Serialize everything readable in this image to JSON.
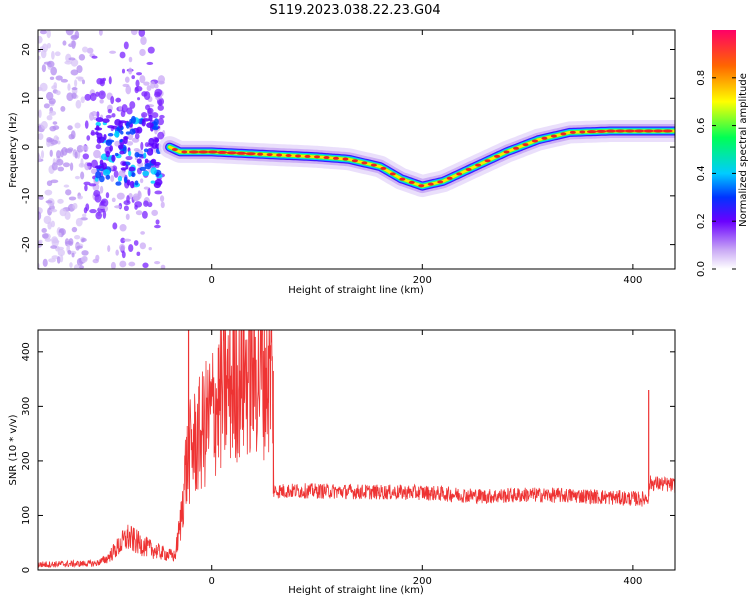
{
  "title": "S119.2023.038.22.23.G04",
  "spectrogram": {
    "type": "heatmap",
    "xlabel": "Height of straight line (km)",
    "ylabel": "Frequency (Hz)",
    "xlim": [
      -165,
      440
    ],
    "ylim": [
      -25,
      24
    ],
    "xticks": [
      0,
      200,
      400
    ],
    "yticks": [
      -20,
      -10,
      0,
      10,
      20
    ],
    "colorbar": {
      "label": "Normalized spectral amplitude",
      "lim": [
        0,
        1
      ],
      "ticks": [
        "0.0",
        "0.2",
        "0.4",
        "0.6",
        "0.8"
      ]
    },
    "ridge": {
      "x": [
        -40,
        -30,
        -20,
        0,
        50,
        100,
        130,
        160,
        180,
        200,
        220,
        250,
        280,
        310,
        340,
        380,
        440
      ],
      "y": [
        0,
        -1,
        -1,
        -1,
        -1.5,
        -2,
        -2.5,
        -4,
        -6.5,
        -8,
        -7,
        -4,
        -1,
        1.5,
        3,
        3.3,
        3.3
      ]
    }
  },
  "snr": {
    "type": "line",
    "xlabel": "Height of straight line (km)",
    "ylabel": "SNR (10 * v/v)",
    "xlim": [
      -165,
      440
    ],
    "ylim": [
      0,
      440
    ],
    "xticks": [
      0,
      200,
      400
    ],
    "yticks": [
      0,
      100,
      200,
      300,
      400
    ],
    "color": "#ee3333",
    "envelope": {
      "x": [
        -165,
        -110,
        -100,
        -90,
        -80,
        -60,
        -45,
        -35,
        -30,
        -25,
        -20,
        -10,
        0,
        10,
        20,
        30,
        40,
        50,
        58,
        59,
        100,
        150,
        200,
        260,
        300,
        350,
        410,
        415,
        416,
        440
      ],
      "y": [
        10,
        12,
        20,
        40,
        60,
        40,
        30,
        25,
        80,
        180,
        220,
        250,
        290,
        320,
        345,
        360,
        365,
        365,
        360,
        145,
        145,
        143,
        142,
        135,
        138,
        136,
        130,
        135,
        160,
        155
      ]
    },
    "spikes": {
      "x": [
        -22,
        415
      ],
      "y": [
        440,
        330
      ]
    }
  }
}
